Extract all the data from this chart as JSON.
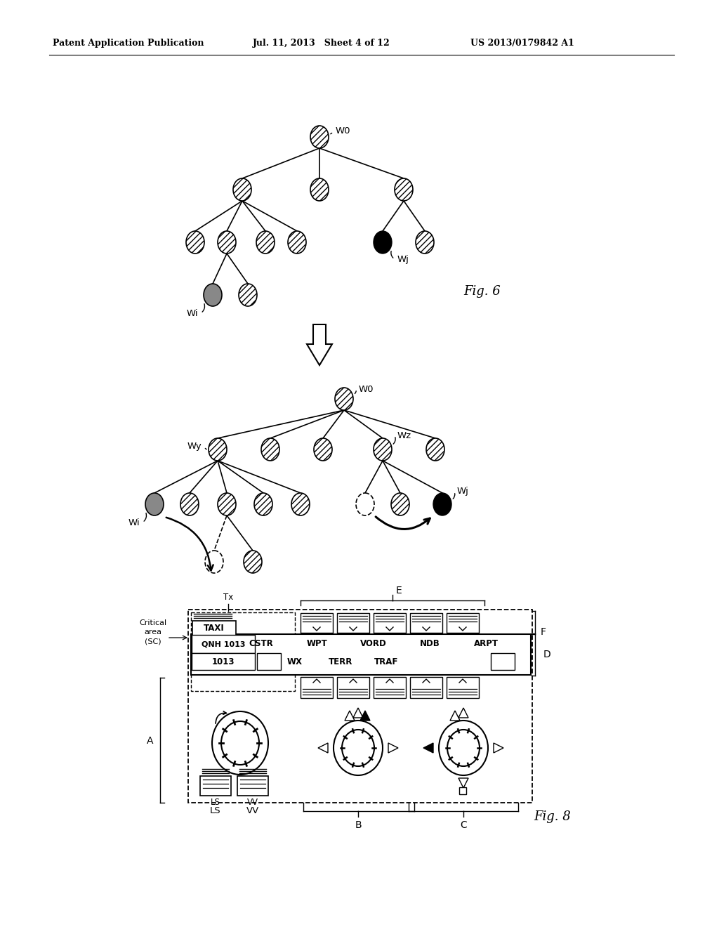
{
  "header_left": "Patent Application Publication",
  "header_mid": "Jul. 11, 2013   Sheet 4 of 12",
  "header_right": "US 2013/0179842 A1",
  "fig6_label": "Fig. 6",
  "fig8_label": "Fig. 8",
  "bg_color": "#ffffff"
}
